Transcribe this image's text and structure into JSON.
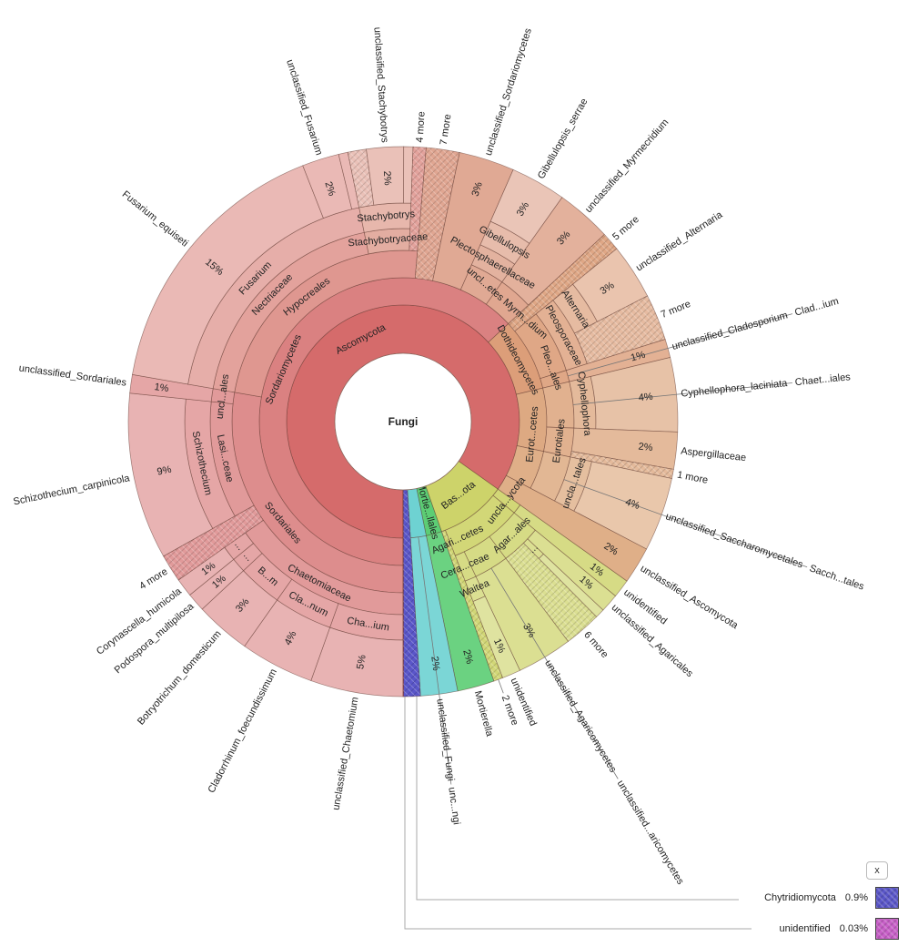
{
  "chart_data": {
    "type": "sunburst",
    "root_label": "Fungi",
    "unit": "%",
    "tree": {
      "name": "Fungi",
      "children": [
        {
          "name": "Ascomycota",
          "color": "#d56b6b",
          "children": [
            {
              "name": "Sordariomycetes",
              "color": "#d67474",
              "children": [
                {
                  "name": "Sordariales",
                  "children": [
                    {
                      "name": "Chaetomiaceae",
                      "children": [
                        {
                          "name": "Cha...ium",
                          "children": [
                            {
                              "name": "unclassified_Chaetomium",
                              "value": 5,
                              "pct": "5%"
                            }
                          ]
                        },
                        {
                          "name": "Cla...num",
                          "children": [
                            {
                              "name": "Cladorrhinum_foecundissimum",
                              "value": 4,
                              "pct": "4%"
                            }
                          ]
                        },
                        {
                          "name": "B...m",
                          "children": [
                            {
                              "name": "Botryotrichum_domesticum",
                              "value": 3,
                              "pct": "3%"
                            }
                          ]
                        },
                        {
                          "name": "...",
                          "children": [
                            {
                              "name": "Podospora_multipilosa",
                              "value": 1,
                              "pct": "1%"
                            }
                          ]
                        },
                        {
                          "name": "...",
                          "children": [
                            {
                              "name": "Corynascella_humicola",
                              "value": 1,
                              "pct": "1%"
                            }
                          ]
                        }
                      ]
                    },
                    {
                      "name": "4 more",
                      "value": 1.5,
                      "hatch": true
                    },
                    {
                      "name": "Lasi...ceae",
                      "children": [
                        {
                          "name": "Schizothecium",
                          "children": [
                            {
                              "name": "Schizothecium_carpinicola",
                              "value": 9,
                              "pct": "9%"
                            }
                          ]
                        }
                      ]
                    },
                    {
                      "name": "uncl...ales",
                      "children": [
                        {
                          "name": "unclassified_Sordariales",
                          "value": 1,
                          "pct": "1%"
                        }
                      ]
                    }
                  ]
                },
                {
                  "name": "Hypocreales",
                  "color": "#d88078",
                  "children": [
                    {
                      "name": "Nectriaceae",
                      "children": [
                        {
                          "name": "Fusarium",
                          "children": [
                            {
                              "name": "Fusarium_equiseti",
                              "value": 15,
                              "pct": "15%"
                            },
                            {
                              "name": "unclassified_Fusarium",
                              "value": 2,
                              "pct": "2%"
                            },
                            {
                              "name": "",
                              "value": 0.5
                            }
                          ]
                        }
                      ]
                    },
                    {
                      "name": "Stachybotryaceae",
                      "color": "#d98e7e",
                      "children": [
                        {
                          "name": "Stachybotrys",
                          "children": [
                            {
                              "name": "",
                              "value": 1,
                              "hatch": true
                            },
                            {
                              "name": "unclassified_Stachybotrys",
                              "value": 2,
                              "pct": "2%"
                            },
                            {
                              "name": "",
                              "value": 0.5
                            }
                          ]
                        }
                      ]
                    },
                    {
                      "name": "4 more",
                      "value": 0.7,
                      "hatch": true
                    }
                  ]
                },
                {
                  "name": "7 more",
                  "color": "#d9927a",
                  "value": 1.8,
                  "hatch": true
                },
                {
                  "name": "unclassified_Sordariomycetes",
                  "color": "#d9967c",
                  "value": 3,
                  "pct": "3%"
                },
                {
                  "name": "",
                  "color": "#d9967c",
                  "children": [
                    {
                      "name": "Plectosphaerellaceae",
                      "children": [
                        {
                          "name": "Gibellulopsis",
                          "children": [
                            {
                              "name": "Gibellulopsis_serrae",
                              "value": 3,
                              "pct": "3%"
                            }
                          ]
                        }
                      ]
                    }
                  ]
                },
                {
                  "name": "uncl...etes Myrm...dium",
                  "color": "#d99478",
                  "children": [
                    {
                      "name": "unclassified_Myrmecridium",
                      "value": 3,
                      "pct": "3%"
                    }
                  ]
                }
              ]
            },
            {
              "name": "Dothideomycetes",
              "color": "#d8946c",
              "children": [
                {
                  "name": "5 more",
                  "value": 1,
                  "hatch": true
                },
                {
                  "name": "Pleo...ales",
                  "children": [
                    {
                      "name": "Pleosporaceae",
                      "children": [
                        {
                          "name": "Alternaria",
                          "children": [
                            {
                              "name": "unclassified_Alternaria",
                              "value": 3,
                              "pct": "3%"
                            }
                          ]
                        },
                        {
                          "name": "7 more",
                          "value": 2.5,
                          "hatch": true
                        }
                      ]
                    }
                  ]
                },
                {
                  "name": "Clad...ium",
                  "children": [
                    {
                      "name": "unclassified_Cladosporium",
                      "value": 1,
                      "pct": "1%"
                    }
                  ]
                }
              ]
            },
            {
              "name": "Eurot...cetes",
              "color": "#daa076",
              "children": [
                {
                  "name": "Chaet...iales",
                  "children": [
                    {
                      "name": "Cyphellophora",
                      "children": [
                        {
                          "name": "Cyphellophora_laciniata",
                          "value": 4,
                          "pct": "4%"
                        }
                      ]
                    }
                  ]
                },
                {
                  "name": "Eurotiales",
                  "children": [
                    {
                      "name": "Aspergillaceae",
                      "value": 2,
                      "pct": "2%"
                    },
                    {
                      "name": "1 more",
                      "value": 0.5,
                      "hatch": true
                    }
                  ]
                }
              ]
            },
            {
              "name": "",
              "color": "#dca77c",
              "children": [
                {
                  "name": "Sacch...tales",
                  "children": [
                    {
                      "name": "uncla...tales",
                      "children": [
                        {
                          "name": "unclassified_Saccharomycetales",
                          "value": 4,
                          "pct": "4%"
                        }
                      ]
                    }
                  ]
                }
              ]
            },
            {
              "name": "unclassified_Ascomycota",
              "color": "#dca77c",
              "value": 2,
              "pct": "2%"
            }
          ]
        },
        {
          "name": "Bas...ota",
          "color": "#cdd36a",
          "children": [
            {
              "name": "uncla...ycota",
              "children": [
                {
                  "name": "unidentified",
                  "value": 1,
                  "pct": "1%"
                }
              ]
            },
            {
              "name": "Agari...cetes",
              "children": [
                {
                  "name": "Agar...ales",
                  "children": [
                    {
                      "name": "unclassified_Agaricales",
                      "value": 1,
                      "pct": "1%"
                    },
                    {
                      "name": "...",
                      "children": [
                        {
                          "name": "",
                          "value": 0.5
                        }
                      ]
                    },
                    {
                      "name": "6 more",
                      "value": 2,
                      "hatch": true
                    }
                  ]
                },
                {
                  "name": "unclassified...aricomycetes",
                  "children": [
                    {
                      "name": "unclassified_Agaricomycetes",
                      "value": 3,
                      "pct": "3%"
                    }
                  ]
                },
                {
                  "name": "Cera...ceae",
                  "children": [
                    {
                      "name": "Waitea",
                      "children": [
                        {
                          "name": "unidentified",
                          "value": 1,
                          "pct": "1%"
                        }
                      ]
                    }
                  ]
                }
              ]
            },
            {
              "name": "2 more",
              "value": 0.5,
              "hatch": true
            }
          ]
        },
        {
          "name": "Mortie...llales",
          "color": "#5ccd74",
          "children": [
            {
              "name": "Mortierella",
              "value": 2,
              "pct": "2%"
            }
          ]
        },
        {
          "name": "unc...ngi",
          "color": "#6ed2d2",
          "children": [
            {
              "name": "unclassified_Fungi",
              "value": 2,
              "pct": "2%"
            }
          ]
        },
        {
          "name": "Chytridiomycota",
          "color": "#5a56c9",
          "value": 0.9,
          "hatch": true,
          "legend": true
        },
        {
          "name": "unidentified",
          "color": "#c85fc8",
          "value": 0.03,
          "hatch": true,
          "legend": true
        }
      ]
    },
    "legend": [
      {
        "name": "Chytridiomycota",
        "pct": "0.9%",
        "color": "#5a56c9"
      },
      {
        "name": "unidentified",
        "pct": "0.03%",
        "color": "#c85fc8"
      }
    ],
    "close_label": "x"
  }
}
